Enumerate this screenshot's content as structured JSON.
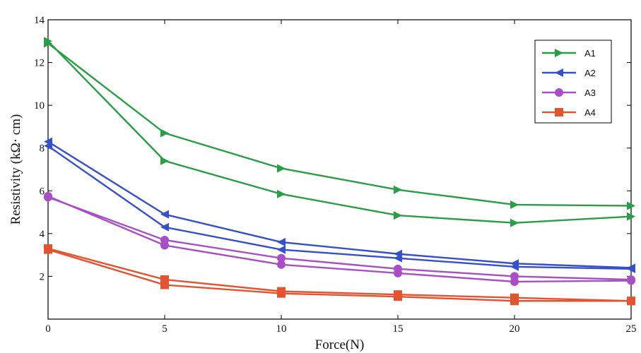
{
  "chart_data": {
    "type": "line",
    "xlabel": "Force(N)",
    "ylabel": "Resistivity (kΩ· cm)",
    "xlim": [
      0,
      25
    ],
    "ylim": [
      0,
      14
    ],
    "xticks": [
      "0",
      "5",
      "10",
      "15",
      "20",
      "25"
    ],
    "yticks": [
      "2",
      "4",
      "6",
      "8",
      "10",
      "12",
      "14"
    ],
    "grid": false,
    "legend_position": "top-right",
    "x": [
      0,
      5,
      10,
      15,
      20,
      25
    ],
    "series": [
      {
        "name": "A1",
        "color": "#2a9d47",
        "marker": "triangle-right",
        "values": [
          12.9,
          8.7,
          7.05,
          6.05,
          5.35,
          5.3
        ],
        "values_b": [
          13.0,
          7.4,
          5.85,
          4.85,
          4.5,
          4.8
        ]
      },
      {
        "name": "A2",
        "color": "#3550c8",
        "marker": "triangle-left",
        "values": [
          8.3,
          4.9,
          3.6,
          3.05,
          2.6,
          2.4
        ],
        "values_b": [
          8.1,
          4.3,
          3.25,
          2.85,
          2.45,
          2.35
        ]
      },
      {
        "name": "A3",
        "color": "#a94fc6",
        "marker": "circle",
        "values": [
          5.7,
          3.7,
          2.85,
          2.35,
          2.0,
          1.85
        ],
        "values_b": [
          5.75,
          3.45,
          2.55,
          2.15,
          1.75,
          1.8
        ]
      },
      {
        "name": "A4",
        "color": "#e4532f",
        "marker": "square",
        "values": [
          3.3,
          1.85,
          1.3,
          1.15,
          1.0,
          0.85
        ],
        "values_b": [
          3.25,
          1.6,
          1.2,
          1.05,
          0.85,
          0.85
        ]
      }
    ]
  }
}
